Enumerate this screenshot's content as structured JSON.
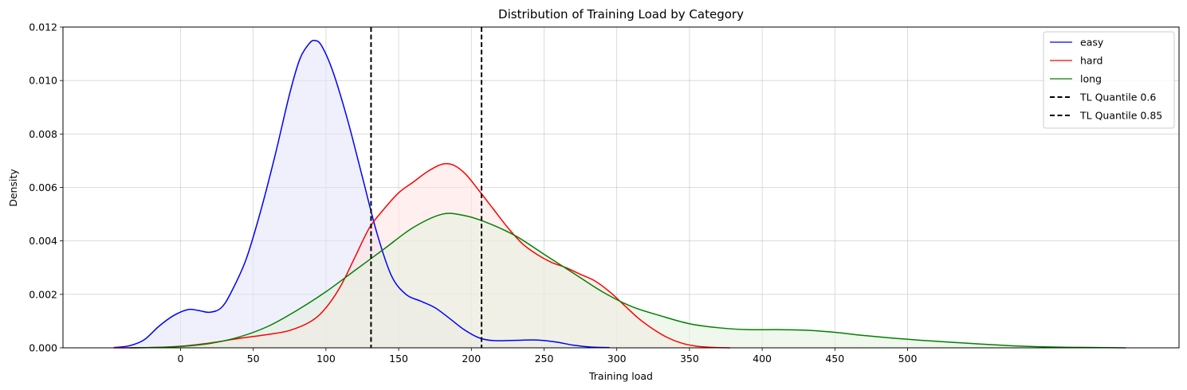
{
  "chart_data": {
    "type": "area",
    "title": "Distribution of Training Load by Category",
    "xlabel": "Training load",
    "ylabel": "Density",
    "xlim": [
      -48,
      670
    ],
    "ylim": [
      0,
      0.012
    ],
    "x_ticks": [
      0,
      50,
      100,
      150,
      200,
      250,
      300,
      350,
      400,
      450,
      500
    ],
    "y_ticks": [
      0.0,
      0.002,
      0.004,
      0.006,
      0.008,
      0.01,
      0.012
    ],
    "y_tick_labels": [
      "0.000",
      "0.002",
      "0.004",
      "0.006",
      "0.008",
      "0.010",
      "0.012"
    ],
    "grid": true,
    "legend_position": "top-right",
    "series": [
      {
        "name": "easy",
        "color": "#0000ff",
        "fill": "#e3e3fb",
        "points": [
          [
            -46,
            1e-05
          ],
          [
            -35,
            8e-05
          ],
          [
            -25,
            0.0003
          ],
          [
            -15,
            0.0008
          ],
          [
            -5,
            0.0012
          ],
          [
            5,
            0.00143
          ],
          [
            12,
            0.0014
          ],
          [
            20,
            0.00133
          ],
          [
            28,
            0.0015
          ],
          [
            35,
            0.0021
          ],
          [
            45,
            0.0033
          ],
          [
            55,
            0.0051
          ],
          [
            65,
            0.0072
          ],
          [
            75,
            0.0095
          ],
          [
            82,
            0.0108
          ],
          [
            88,
            0.01135
          ],
          [
            92,
            0.0115
          ],
          [
            97,
            0.0113
          ],
          [
            105,
            0.0103
          ],
          [
            115,
            0.0085
          ],
          [
            125,
            0.0064
          ],
          [
            135,
            0.0043
          ],
          [
            145,
            0.0027
          ],
          [
            155,
            0.002
          ],
          [
            165,
            0.00175
          ],
          [
            175,
            0.0015
          ],
          [
            185,
            0.0011
          ],
          [
            195,
            0.00068
          ],
          [
            205,
            0.00038
          ],
          [
            215,
            0.00027
          ],
          [
            230,
            0.00028
          ],
          [
            245,
            0.00029
          ],
          [
            258,
            0.00022
          ],
          [
            270,
            0.0001
          ],
          [
            282,
            3e-05
          ],
          [
            295,
            1e-05
          ]
        ]
      },
      {
        "name": "hard",
        "color": "#ff0000",
        "fill": "#ffe1e1",
        "points": [
          [
            -46,
            0
          ],
          [
            -20,
            1e-05
          ],
          [
            0,
            6e-05
          ],
          [
            20,
            0.00018
          ],
          [
            40,
            0.00035
          ],
          [
            60,
            0.0005
          ],
          [
            75,
            0.00065
          ],
          [
            90,
            0.001
          ],
          [
            100,
            0.0015
          ],
          [
            110,
            0.0023
          ],
          [
            120,
            0.0034
          ],
          [
            130,
            0.0045
          ],
          [
            140,
            0.0052
          ],
          [
            150,
            0.0058
          ],
          [
            160,
            0.0062
          ],
          [
            170,
            0.0066
          ],
          [
            180,
            0.00687
          ],
          [
            188,
            0.00683
          ],
          [
            196,
            0.0065
          ],
          [
            205,
            0.0059
          ],
          [
            215,
            0.0052
          ],
          [
            225,
            0.0045
          ],
          [
            235,
            0.0039
          ],
          [
            245,
            0.0035
          ],
          [
            255,
            0.0032
          ],
          [
            265,
            0.003
          ],
          [
            275,
            0.00275
          ],
          [
            285,
            0.0025
          ],
          [
            295,
            0.0021
          ],
          [
            305,
            0.0016
          ],
          [
            315,
            0.0011
          ],
          [
            325,
            0.0007
          ],
          [
            335,
            0.00038
          ],
          [
            345,
            0.00017
          ],
          [
            355,
            6e-05
          ],
          [
            365,
            2e-05
          ],
          [
            378,
            0
          ]
        ]
      },
      {
        "name": "long",
        "color": "#008000",
        "fill": "#e3f1de",
        "points": [
          [
            -35,
            0
          ],
          [
            -20,
            1e-05
          ],
          [
            0,
            5e-05
          ],
          [
            20,
            0.00016
          ],
          [
            40,
            0.0004
          ],
          [
            60,
            0.0008
          ],
          [
            80,
            0.0014
          ],
          [
            100,
            0.0021
          ],
          [
            120,
            0.0029
          ],
          [
            140,
            0.0037
          ],
          [
            160,
            0.0045
          ],
          [
            180,
            0.005
          ],
          [
            195,
            0.00495
          ],
          [
            210,
            0.0047
          ],
          [
            230,
            0.0042
          ],
          [
            250,
            0.0035
          ],
          [
            270,
            0.0028
          ],
          [
            290,
            0.0021
          ],
          [
            310,
            0.00155
          ],
          [
            330,
            0.0012
          ],
          [
            350,
            0.0009
          ],
          [
            370,
            0.00075
          ],
          [
            390,
            0.00068
          ],
          [
            410,
            0.00068
          ],
          [
            430,
            0.00066
          ],
          [
            450,
            0.00058
          ],
          [
            470,
            0.00046
          ],
          [
            490,
            0.00036
          ],
          [
            510,
            0.00028
          ],
          [
            530,
            0.00021
          ],
          [
            550,
            0.00014
          ],
          [
            570,
            8e-05
          ],
          [
            590,
            4e-05
          ],
          [
            610,
            2e-05
          ],
          [
            630,
            1e-05
          ],
          [
            650,
            0
          ]
        ]
      }
    ],
    "vlines": [
      {
        "name": "TL Quantile 0.6",
        "x": 131,
        "color": "#000000",
        "style": "dashed"
      },
      {
        "name": "TL Quantile 0.85",
        "x": 207,
        "color": "#000000",
        "style": "dashed"
      }
    ]
  }
}
